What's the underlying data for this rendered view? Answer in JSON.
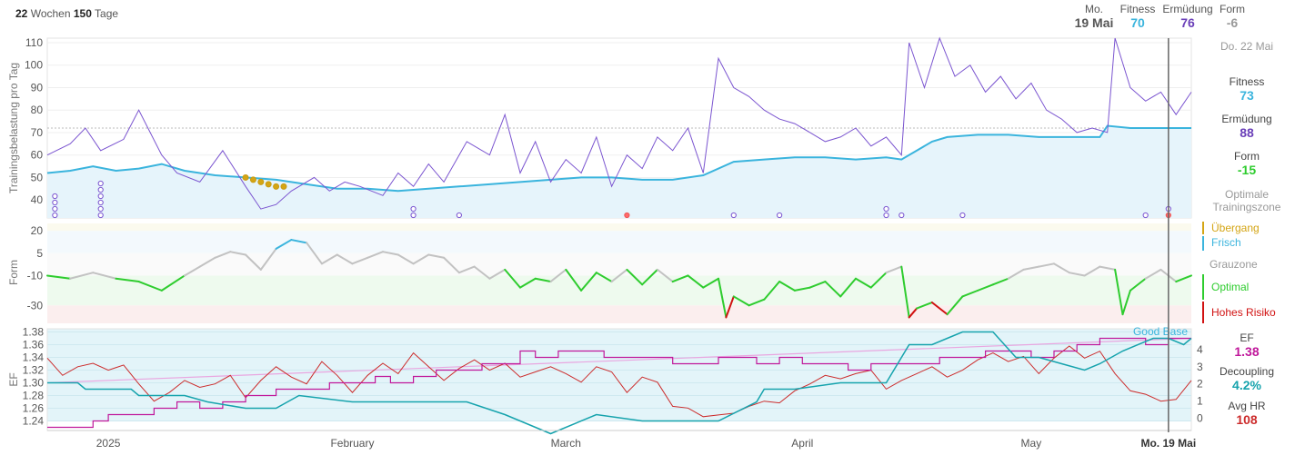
{
  "header": {
    "weeks": "22",
    "weeks_label": "Wochen",
    "days": "150",
    "days_label": "Tage",
    "date_day": "Mo.",
    "date": "19 Mai",
    "fitness_label": "Fitness",
    "fitness": "70",
    "fatigue_label": "Ermüdung",
    "fatigue": "76",
    "form_label": "Form",
    "form": "-6"
  },
  "side": {
    "date": "Do. 22 Mai",
    "fitness_label": "Fitness",
    "fitness": "73",
    "fatigue_label": "Ermüdung",
    "fatigue": "88",
    "form_label": "Form",
    "form": "-15",
    "zone_note": "Optimale Trainingszone",
    "zones": [
      "Übergang",
      "Frisch",
      "Grauzone",
      "Optimal",
      "Hohes Risiko"
    ],
    "ef_label": "EF",
    "ef": "1.38",
    "decoupling_label": "Decoupling",
    "decoupling": "4.2%",
    "avghr_label": "Avg HR",
    "avghr": "108"
  },
  "colors": {
    "fitness": "#3ab4dd",
    "fatigue": "#7b55d0",
    "form_pos": "#3ab4dd",
    "optimal": "#2ecc2e",
    "grey": "#c2c2c2",
    "risk": "#d11111",
    "ef_teal": "#16a3ad",
    "ef_magenta": "#c0189b",
    "ef_red": "#cc2b2b",
    "transition": "#d4a514"
  },
  "chart_data": [
    {
      "type": "line",
      "title": "Trainingsbelastung pro Tag",
      "ylabel": "Trainingsbelastung pro Tag",
      "ylim": [
        32,
        112
      ],
      "yticks": [
        "110",
        "100",
        "90",
        "80",
        "70",
        "60",
        "50",
        "40"
      ],
      "reference_line": 72,
      "x_range": [
        0,
        150
      ],
      "series": [
        {
          "name": "Fitness",
          "x": [
            0,
            3,
            6,
            9,
            12,
            15,
            18,
            22,
            26,
            30,
            34,
            38,
            42,
            46,
            50,
            54,
            58,
            62,
            66,
            70,
            74,
            78,
            82,
            86,
            90,
            94,
            98,
            102,
            106,
            110,
            112,
            116,
            118,
            122,
            126,
            130,
            134,
            138,
            139,
            142,
            146,
            150
          ],
          "values": [
            52,
            53,
            55,
            53,
            54,
            56,
            53,
            51,
            50,
            49,
            47,
            45,
            45,
            44,
            45,
            46,
            47,
            48,
            49,
            50,
            50,
            49,
            49,
            51,
            57,
            58,
            59,
            59,
            58,
            59,
            58,
            66,
            68,
            69,
            69,
            68,
            68,
            68,
            73,
            72,
            72,
            72
          ]
        },
        {
          "name": "Ermüdung",
          "x": [
            0,
            3,
            5,
            7,
            10,
            12,
            15,
            17,
            20,
            23,
            26,
            28,
            30,
            32,
            35,
            37,
            39,
            41,
            44,
            46,
            48,
            50,
            52,
            55,
            58,
            60,
            62,
            64,
            66,
            68,
            70,
            72,
            74,
            76,
            78,
            80,
            82,
            84,
            86,
            88,
            90,
            92,
            94,
            96,
            98,
            100,
            102,
            104,
            106,
            108,
            110,
            112,
            113,
            115,
            117,
            119,
            121,
            123,
            125,
            127,
            129,
            131,
            133,
            135,
            137,
            139,
            140,
            142,
            144,
            146,
            148,
            150
          ],
          "values": [
            60,
            65,
            72,
            62,
            67,
            80,
            60,
            52,
            48,
            62,
            46,
            36,
            38,
            44,
            50,
            44,
            48,
            46,
            42,
            52,
            46,
            56,
            48,
            66,
            60,
            78,
            52,
            66,
            48,
            58,
            52,
            68,
            46,
            60,
            54,
            68,
            62,
            72,
            52,
            103,
            90,
            86,
            80,
            76,
            74,
            70,
            66,
            68,
            72,
            64,
            68,
            60,
            110,
            90,
            112,
            95,
            100,
            88,
            95,
            85,
            92,
            80,
            76,
            70,
            72,
            70,
            112,
            90,
            84,
            88,
            78,
            88
          ]
        }
      ],
      "activity_dots": {
        "x": [
          1,
          7,
          48,
          54,
          76,
          90,
          96,
          110,
          112,
          120,
          144,
          147
        ],
        "counts": [
          4,
          6,
          2,
          1,
          1,
          1,
          1,
          2,
          1,
          1,
          1,
          2
        ]
      }
    },
    {
      "type": "line",
      "ylabel": "Form",
      "ylim": [
        -42,
        25
      ],
      "yticks": [
        "20",
        "5",
        "-10",
        "-30"
      ],
      "x_range": [
        0,
        150
      ],
      "series": [
        {
          "name": "Form",
          "x": [
            0,
            3,
            6,
            9,
            12,
            15,
            18,
            20,
            22,
            24,
            26,
            28,
            30,
            32,
            34,
            36,
            38,
            40,
            42,
            44,
            46,
            48,
            50,
            52,
            54,
            56,
            58,
            60,
            62,
            64,
            66,
            68,
            70,
            72,
            74,
            76,
            78,
            80,
            82,
            84,
            86,
            88,
            89,
            90,
            92,
            94,
            96,
            98,
            100,
            102,
            104,
            106,
            108,
            110,
            112,
            113,
            114,
            116,
            118,
            120,
            122,
            124,
            126,
            128,
            130,
            132,
            134,
            136,
            138,
            140,
            141,
            142,
            144,
            146,
            148,
            150
          ],
          "values": [
            -10,
            -12,
            -8,
            -12,
            -14,
            -20,
            -10,
            -4,
            2,
            6,
            4,
            -6,
            8,
            14,
            12,
            -2,
            4,
            -2,
            2,
            6,
            4,
            -2,
            4,
            2,
            -8,
            -4,
            -12,
            -6,
            -18,
            -12,
            -14,
            -6,
            -20,
            -8,
            -14,
            -6,
            -16,
            -6,
            -14,
            -10,
            -18,
            -12,
            -38,
            -24,
            -30,
            -26,
            -14,
            -20,
            -18,
            -14,
            -24,
            -12,
            -18,
            -8,
            -4,
            -38,
            -32,
            -28,
            -36,
            -24,
            -20,
            -16,
            -12,
            -6,
            -4,
            -2,
            -8,
            -10,
            -4,
            -6,
            -36,
            -20,
            -12,
            -6,
            -14,
            -10
          ]
        }
      ],
      "zones": [
        {
          "name": "Übergang",
          "from": 20,
          "to": 25
        },
        {
          "name": "Frisch",
          "from": 5,
          "to": 20
        },
        {
          "name": "Grauzone",
          "from": -10,
          "to": 5
        },
        {
          "name": "Optimal",
          "from": -30,
          "to": -10
        },
        {
          "name": "Hohes Risiko",
          "from": -42,
          "to": -30
        }
      ]
    },
    {
      "type": "line",
      "ylabel": "EF",
      "ylim": [
        1.225,
        1.385
      ],
      "yticks": [
        "1.38",
        "1.36",
        "1.34",
        "1.32",
        "1.30",
        "1.28",
        "1.26",
        "1.24"
      ],
      "y2ticks": [
        "4",
        "3",
        "2",
        "1",
        "0"
      ],
      "y2lim": [
        -0.7,
        5.2
      ],
      "annotation": "Good Base",
      "x_labels": [
        "2025",
        "February",
        "March",
        "April",
        "May",
        "Mo. 19 Mai"
      ],
      "x_label_days": [
        8,
        40,
        68,
        99,
        129,
        147
      ],
      "cursor_day": 147,
      "x_range": [
        0,
        150
      ],
      "series": [
        {
          "name": "EF",
          "x": [
            0,
            4,
            5,
            11,
            12,
            18,
            21,
            26,
            30,
            33,
            40,
            44,
            50,
            55,
            60,
            62,
            66,
            72,
            78,
            81,
            84,
            88,
            93,
            94,
            98,
            104,
            106,
            110,
            113,
            116,
            118,
            120,
            124,
            127,
            130,
            133,
            136,
            138,
            141,
            145,
            147,
            149,
            150
          ],
          "values": [
            1.3,
            1.3,
            1.29,
            1.29,
            1.28,
            1.28,
            1.27,
            1.26,
            1.26,
            1.28,
            1.27,
            1.27,
            1.27,
            1.27,
            1.25,
            1.24,
            1.22,
            1.25,
            1.24,
            1.24,
            1.24,
            1.24,
            1.27,
            1.29,
            1.29,
            1.3,
            1.3,
            1.3,
            1.36,
            1.36,
            1.37,
            1.38,
            1.38,
            1.34,
            1.34,
            1.33,
            1.32,
            1.33,
            1.35,
            1.37,
            1.37,
            1.36,
            1.37
          ]
        },
        {
          "name": "Decoupling",
          "x": [
            0,
            3,
            6,
            8,
            11,
            14,
            17,
            20,
            23,
            26,
            30,
            34,
            37,
            40,
            43,
            45,
            48,
            51,
            54,
            57,
            60,
            62,
            64,
            67,
            70,
            73,
            76,
            79,
            82,
            85,
            88,
            90,
            93,
            96,
            99,
            102,
            105,
            108,
            111,
            114,
            117,
            120,
            123,
            126,
            129,
            132,
            135,
            138,
            141,
            144,
            147,
            150
          ],
          "values": [
            1.23,
            1.23,
            1.24,
            1.25,
            1.25,
            1.26,
            1.27,
            1.26,
            1.27,
            1.28,
            1.29,
            1.29,
            1.3,
            1.3,
            1.31,
            1.3,
            1.31,
            1.32,
            1.32,
            1.33,
            1.33,
            1.35,
            1.34,
            1.35,
            1.35,
            1.34,
            1.34,
            1.34,
            1.33,
            1.33,
            1.34,
            1.34,
            1.33,
            1.34,
            1.33,
            1.33,
            1.32,
            1.33,
            1.33,
            1.33,
            1.34,
            1.34,
            1.35,
            1.35,
            1.34,
            1.35,
            1.36,
            1.37,
            1.37,
            1.36,
            1.37,
            1.37
          ]
        },
        {
          "name": "Avg HR",
          "x": [
            0,
            2,
            4,
            6,
            8,
            10,
            12,
            14,
            16,
            18,
            20,
            22,
            24,
            26,
            28,
            30,
            32,
            34,
            36,
            38,
            40,
            42,
            44,
            46,
            48,
            50,
            52,
            54,
            56,
            58,
            60,
            62,
            64,
            66,
            68,
            70,
            72,
            74,
            76,
            78,
            80,
            82,
            84,
            86,
            88,
            90,
            92,
            94,
            96,
            98,
            100,
            102,
            104,
            106,
            108,
            110,
            112,
            114,
            116,
            118,
            120,
            122,
            124,
            126,
            128,
            130,
            132,
            134,
            136,
            138,
            140,
            142,
            144,
            146,
            148,
            150
          ],
          "values": [
            3.5,
            2.5,
            3.0,
            3.2,
            2.8,
            3.1,
            2.0,
            1.0,
            1.5,
            2.2,
            1.8,
            2.0,
            2.5,
            1.2,
            2.2,
            3.0,
            2.4,
            2.0,
            3.3,
            2.5,
            1.5,
            2.5,
            3.2,
            2.6,
            3.8,
            3.0,
            2.2,
            2.9,
            3.4,
            2.8,
            3.2,
            2.4,
            2.7,
            3.0,
            2.6,
            2.1,
            3.0,
            2.7,
            1.5,
            2.4,
            2.1,
            0.7,
            0.6,
            0.1,
            0.2,
            0.3,
            0.7,
            1.0,
            0.9,
            1.6,
            2.0,
            2.5,
            2.3,
            2.6,
            2.8,
            1.7,
            2.2,
            2.6,
            3.0,
            2.4,
            2.8,
            3.4,
            3.8,
            3.3,
            3.6,
            2.6,
            3.5,
            4.2,
            3.5,
            3.9,
            2.6,
            1.6,
            1.4,
            1.0,
            1.1,
            2.2
          ]
        },
        {
          "name": "Trend",
          "x": [
            0,
            150
          ],
          "values": [
            1.3,
            1.37
          ]
        }
      ]
    }
  ]
}
